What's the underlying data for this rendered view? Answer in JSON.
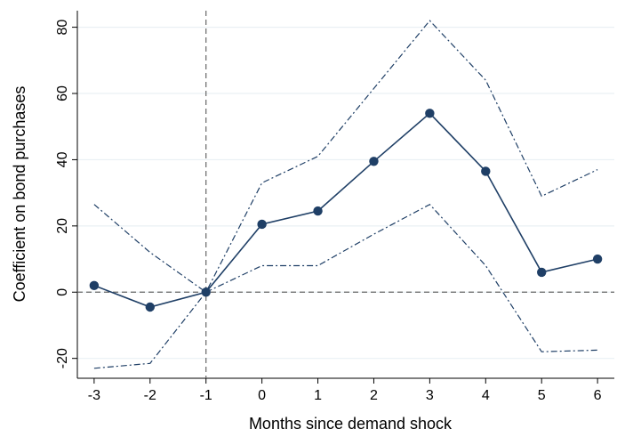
{
  "chart_data": {
    "type": "line",
    "xlabel": "Months since demand shock",
    "ylabel": "Coefficient on bond purchases",
    "x": [
      -3,
      -2,
      -1,
      0,
      1,
      2,
      3,
      4,
      5,
      6
    ],
    "x_tick_labels": [
      "-3",
      "-2",
      "-1",
      "0",
      "1",
      "2",
      "3",
      "4",
      "5",
      "6"
    ],
    "y_ticks": [
      -20,
      0,
      20,
      40,
      60,
      80
    ],
    "y_tick_labels": [
      "-20",
      "0",
      "20",
      "40",
      "60",
      "80"
    ],
    "xlim": [
      -3.3,
      6.3
    ],
    "ylim": [
      -26,
      85
    ],
    "grid": "horizontal",
    "reference_lines": {
      "x": -1,
      "y": 0
    },
    "series": [
      {
        "role": "upper-ci",
        "style": "dash-dot",
        "values": [
          26.5,
          12,
          0,
          33,
          41,
          61.5,
          82,
          64,
          29,
          37
        ]
      },
      {
        "role": "estimate",
        "style": "solid-markers",
        "values": [
          2,
          -4.5,
          0,
          20.5,
          24.5,
          39.5,
          54,
          36.5,
          6,
          10
        ]
      },
      {
        "role": "lower-ci",
        "style": "dash-dot",
        "values": [
          -23,
          -21.5,
          0,
          8,
          8,
          17.5,
          26.5,
          8,
          -18,
          -17.5
        ]
      }
    ],
    "colors": {
      "line": "#1f3f66",
      "grid": "#eaf0f4",
      "axis": "#000000",
      "reference": "#666666"
    }
  }
}
